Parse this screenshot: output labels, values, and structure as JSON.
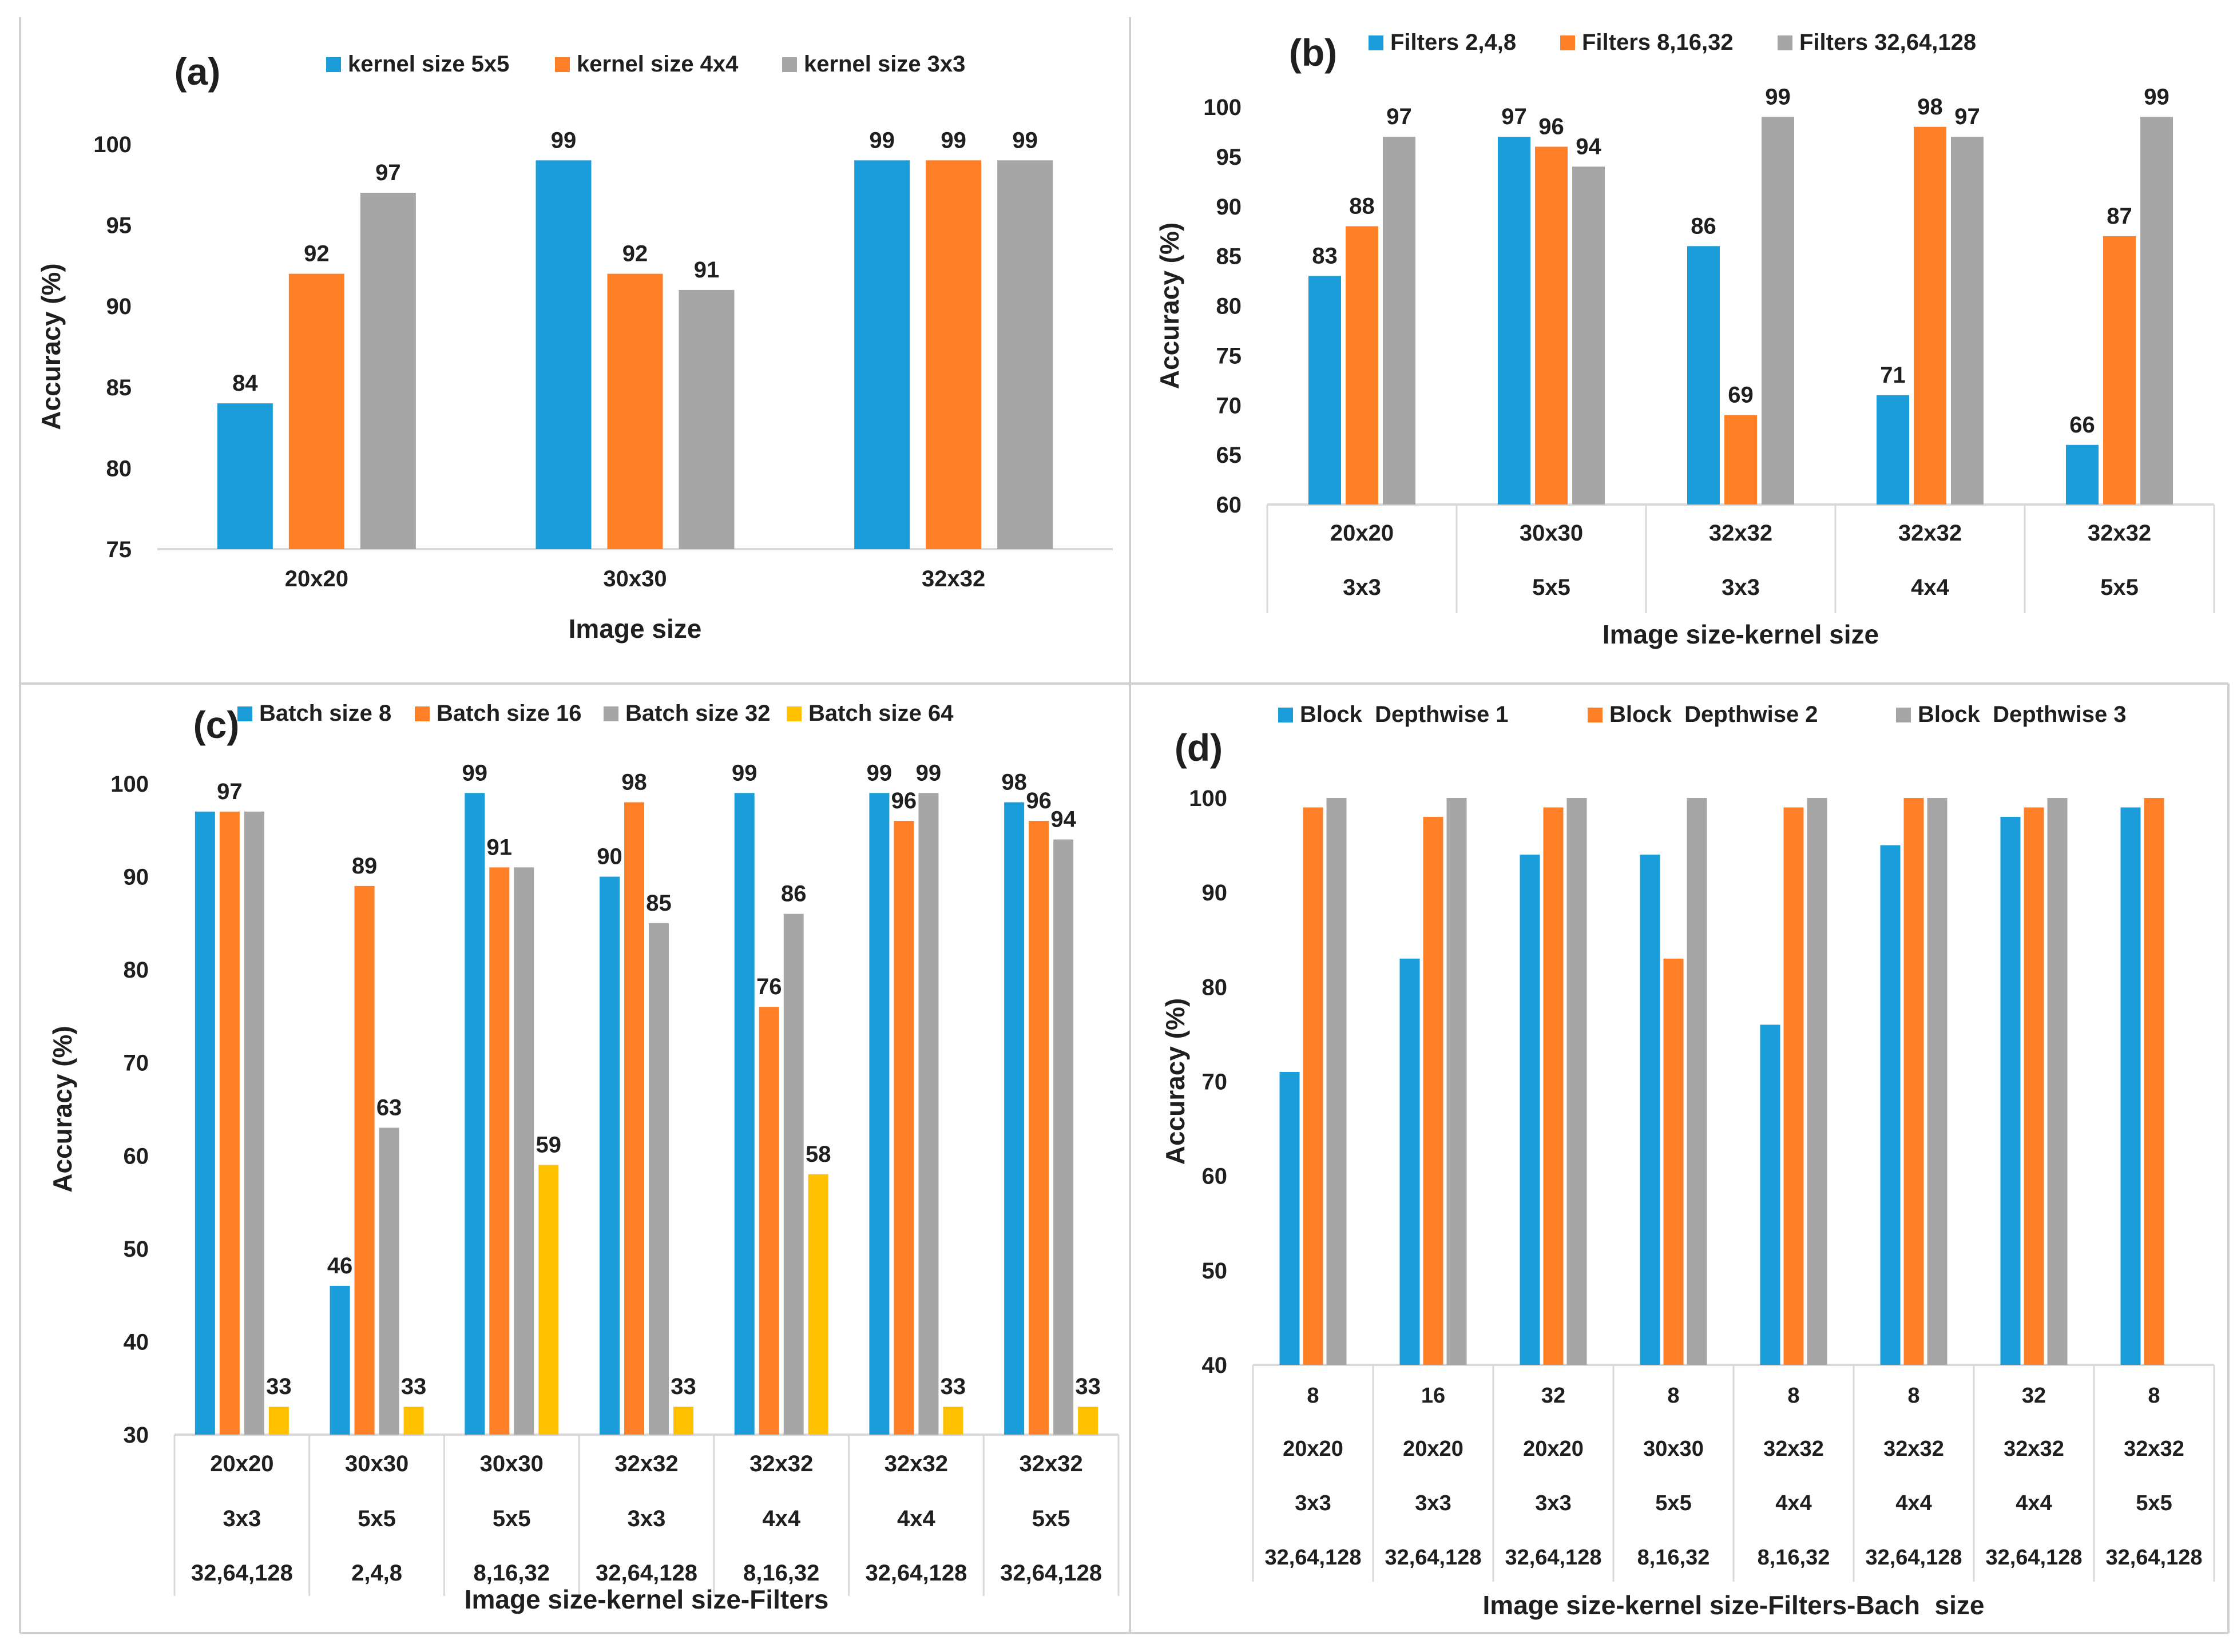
{
  "chart_data": [
    {
      "panel_label": "(a)",
      "type": "bar",
      "categories": [
        [
          "20x20"
        ],
        [
          "30x30"
        ],
        [
          "32x32"
        ]
      ],
      "series": [
        {
          "name": "kernel size 5x5",
          "color": "#1B9DD9",
          "values": [
            84,
            99,
            99
          ]
        },
        {
          "name": "kernel size 4x4",
          "color": "#FF7F27",
          "values": [
            92,
            92,
            99
          ]
        },
        {
          "name": "kernel size 3x3",
          "color": "#A6A6A6",
          "values": [
            97,
            91,
            99
          ]
        }
      ],
      "data_labels": [
        [
          "84",
          "99",
          "99"
        ],
        [
          "92",
          "92",
          "99"
        ],
        [
          "97",
          "91",
          "99"
        ]
      ],
      "xlabel": "Image size",
      "ylabel": "Accuracy (%)",
      "ylim": [
        75,
        100
      ],
      "yticks": [
        75,
        80,
        85,
        90,
        95,
        100
      ],
      "legend": "top"
    },
    {
      "panel_label": "(b)",
      "type": "bar",
      "categories": [
        [
          "20x20",
          "3x3"
        ],
        [
          "30x30",
          "5x5"
        ],
        [
          "32x32",
          "3x3"
        ],
        [
          "32x32",
          "4x4"
        ],
        [
          "32x32",
          "5x5"
        ]
      ],
      "series": [
        {
          "name": "Filters 2,4,8",
          "color": "#1B9DD9",
          "values": [
            83,
            97,
            86,
            71,
            66
          ]
        },
        {
          "name": "Filters 8,16,32",
          "color": "#FF7F27",
          "values": [
            88,
            96,
            69,
            98,
            87
          ]
        },
        {
          "name": "Filters 32,64,128",
          "color": "#A6A6A6",
          "values": [
            97,
            94,
            99,
            97,
            99
          ]
        }
      ],
      "data_labels": [
        [
          "83",
          "97",
          "86",
          "71",
          "66"
        ],
        [
          "88",
          "96",
          "69",
          "98",
          "87"
        ],
        [
          "97",
          "94",
          "99",
          "97",
          "99"
        ]
      ],
      "xlabel": "Image size-kernel size",
      "ylabel": "Accuracy (%)",
      "ylim": [
        60,
        100
      ],
      "yticks": [
        60,
        65,
        70,
        75,
        80,
        85,
        90,
        95,
        100
      ],
      "legend": "top"
    },
    {
      "panel_label": "(c)",
      "type": "bar",
      "categories": [
        [
          "20x20",
          "3x3",
          "32,64,128"
        ],
        [
          "30x30",
          "5x5",
          "2,4,8"
        ],
        [
          "30x30",
          "5x5",
          "8,16,32"
        ],
        [
          "32x32",
          "3x3",
          "32,64,128"
        ],
        [
          "32x32",
          "4x4",
          "8,16,32"
        ],
        [
          "32x32",
          "4x4",
          "32,64,128"
        ],
        [
          "32x32",
          "5x5",
          "32,64,128"
        ]
      ],
      "series": [
        {
          "name": "Batch size 8",
          "color": "#1B9DD9",
          "values": [
            97,
            46,
            99,
            90,
            99,
            99,
            98
          ]
        },
        {
          "name": "Batch size 16",
          "color": "#FF7F27",
          "values": [
            97,
            89,
            91,
            98,
            76,
            96,
            96
          ]
        },
        {
          "name": "Batch size 32",
          "color": "#A6A6A6",
          "values": [
            97,
            63,
            91,
            85,
            86,
            99,
            94
          ]
        },
        {
          "name": "Batch size 64",
          "color": "#FFC000",
          "values": [
            33,
            33,
            59,
            33,
            58,
            33,
            33
          ]
        }
      ],
      "data_labels": [
        [
          "",
          "46",
          "99",
          "90",
          "99",
          "99",
          "98"
        ],
        [
          "97",
          "89",
          "91",
          "98",
          "76",
          "96",
          "96"
        ],
        [
          "",
          "63",
          "",
          "85",
          "86",
          "99",
          "94"
        ],
        [
          "33",
          "33",
          "59",
          "33",
          "58",
          "33",
          "33"
        ]
      ],
      "xlabel": "Image size-kernel size-Filters",
      "ylabel": "Accuracy (%)",
      "ylim": [
        30,
        100
      ],
      "yticks": [
        30,
        40,
        50,
        60,
        70,
        80,
        90,
        100
      ],
      "legend": "top"
    },
    {
      "panel_label": "(d)",
      "type": "bar",
      "categories": [
        [
          "8",
          "20x20",
          "3x3",
          "32,64,128"
        ],
        [
          "16",
          "20x20",
          "3x3",
          "32,64,128"
        ],
        [
          "32",
          "20x20",
          "3x3",
          "32,64,128"
        ],
        [
          "8",
          "30x30",
          "5x5",
          "8,16,32"
        ],
        [
          "8",
          "32x32",
          "4x4",
          "8,16,32"
        ],
        [
          "8",
          "32x32",
          "4x4",
          "32,64,128"
        ],
        [
          "32",
          "32x32",
          "4x4",
          "32,64,128"
        ],
        [
          "8",
          "32x32",
          "5x5",
          "32,64,128"
        ]
      ],
      "series": [
        {
          "name": "Block  Depthwise 1",
          "color": "#1B9DD9",
          "values": [
            71,
            83,
            94,
            94,
            76,
            95,
            98,
            99
          ]
        },
        {
          "name": "Block  Depthwise 2",
          "color": "#FF7F27",
          "values": [
            99,
            98,
            99,
            83,
            99,
            100,
            99,
            100
          ]
        },
        {
          "name": "Block  Depthwise 3",
          "color": "#A6A6A6",
          "values": [
            100,
            100,
            100,
            100,
            100,
            100,
            100,
            40
          ]
        }
      ],
      "data_labels": [],
      "xlabel": "Image size-kernel size-Filters-Bach  size",
      "ylabel": "Accuracy (%)",
      "ylim": [
        40,
        100
      ],
      "yticks": [
        40,
        50,
        60,
        70,
        80,
        90,
        100
      ],
      "legend": "top"
    }
  ]
}
